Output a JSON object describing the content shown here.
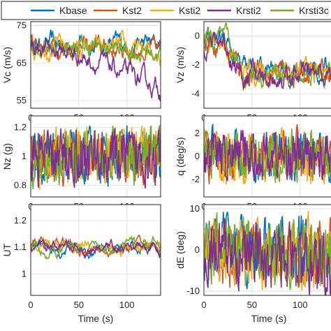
{
  "legend": {
    "entries": [
      {
        "name": "Kbase",
        "color": "#0072BD"
      },
      {
        "name": "Kst2",
        "color": "#D95319"
      },
      {
        "name": "Ksti2",
        "color": "#EDB120"
      },
      {
        "name": "Krsti2",
        "color": "#7E2F8E"
      },
      {
        "name": "Krsti3c",
        "color": "#77AC30"
      }
    ]
  },
  "chart_data": [
    {
      "type": "line",
      "id": "vc",
      "ylabel": "Vc (m/s)",
      "xlabel": "",
      "xlim": [
        0,
        135
      ],
      "ylim": [
        53,
        76
      ],
      "xticks": [
        0,
        50,
        100
      ],
      "yticks": [
        55,
        65,
        75
      ],
      "grid": true,
      "series_trend": {
        "Kbase": [
          [
            0,
            70
          ],
          [
            135,
            70
          ]
        ],
        "Kst2": [
          [
            0,
            70
          ],
          [
            135,
            68
          ]
        ],
        "Ksti2": [
          [
            0,
            70
          ],
          [
            135,
            68
          ]
        ],
        "Krsti2": [
          [
            0,
            70
          ],
          [
            40,
            68
          ],
          [
            80,
            64
          ],
          [
            135,
            58
          ]
        ],
        "Krsti3c": [
          [
            0,
            70
          ],
          [
            135,
            68
          ]
        ]
      },
      "noise_amplitude": 2.8,
      "noise_smooth": 0.82
    },
    {
      "type": "line",
      "id": "vz",
      "ylabel": "Vz (m/s)",
      "xlabel": "",
      "xlim": [
        0,
        135
      ],
      "ylim": [
        -5,
        1
      ],
      "xticks": [
        0,
        50,
        100
      ],
      "yticks": [
        -4,
        -2,
        0
      ],
      "grid": true,
      "series_trend": {
        "Kbase": [
          [
            0,
            -0.5
          ],
          [
            20,
            -0.3
          ],
          [
            40,
            -2.5
          ],
          [
            135,
            -2.5
          ]
        ],
        "Kst2": [
          [
            0,
            -0.5
          ],
          [
            20,
            -0.3
          ],
          [
            40,
            -2.6
          ],
          [
            135,
            -2.6
          ]
        ],
        "Ksti2": [
          [
            0,
            -0.5
          ],
          [
            20,
            -0.3
          ],
          [
            40,
            -2.5
          ],
          [
            135,
            -2.5
          ]
        ],
        "Krsti2": [
          [
            0,
            -0.5
          ],
          [
            20,
            -0.3
          ],
          [
            40,
            -2.8
          ],
          [
            135,
            -2.8
          ]
        ],
        "Krsti3c": [
          [
            0,
            -0.5
          ],
          [
            20,
            -0.3
          ],
          [
            40,
            -2.6
          ],
          [
            135,
            -2.6
          ]
        ]
      },
      "noise_amplitude": 0.8,
      "noise_smooth": 0.8
    },
    {
      "type": "line",
      "id": "nz",
      "ylabel": "Nz (g)",
      "xlabel": "",
      "xlim": [
        0,
        135
      ],
      "ylim": [
        0.72,
        1.28
      ],
      "xticks": [
        0,
        50,
        100
      ],
      "yticks": [
        0.8,
        1,
        1.2
      ],
      "grid": true,
      "series_trend": {
        "Kbase": [
          [
            0,
            1
          ],
          [
            135,
            1
          ]
        ],
        "Kst2": [
          [
            0,
            1
          ],
          [
            135,
            1
          ]
        ],
        "Ksti2": [
          [
            0,
            1
          ],
          [
            135,
            1
          ]
        ],
        "Krsti2": [
          [
            0,
            1
          ],
          [
            135,
            1
          ]
        ],
        "Krsti3c": [
          [
            0,
            1
          ],
          [
            135,
            1
          ]
        ]
      },
      "noise_amplitude": 0.08,
      "noise_smooth": 0.35
    },
    {
      "type": "line",
      "id": "q",
      "ylabel": "q (deg/s)",
      "xlabel": "",
      "xlim": [
        0,
        135
      ],
      "ylim": [
        -3.5,
        3.5
      ],
      "xticks": [
        0,
        50,
        100
      ],
      "yticks": [
        -2,
        0,
        2
      ],
      "grid": true,
      "series_trend": {
        "Kbase": [
          [
            0,
            0
          ],
          [
            135,
            0
          ]
        ],
        "Kst2": [
          [
            0,
            0
          ],
          [
            135,
            0
          ]
        ],
        "Ksti2": [
          [
            0,
            0
          ],
          [
            135,
            0
          ]
        ],
        "Krsti2": [
          [
            0,
            0
          ],
          [
            135,
            0
          ]
        ],
        "Krsti3c": [
          [
            0,
            0
          ],
          [
            135,
            0
          ]
        ]
      },
      "noise_amplitude": 1.0,
      "noise_smooth": 0.45
    },
    {
      "type": "line",
      "id": "ut",
      "ylabel": "UT",
      "xlabel": "Time (s)",
      "xlim": [
        0,
        135
      ],
      "ylim": [
        0.92,
        1.26
      ],
      "xticks": [
        0,
        50,
        100
      ],
      "yticks": [
        1,
        1.1,
        1.2
      ],
      "grid": true,
      "series_trend": {
        "Kbase": [
          [
            0,
            1.1
          ],
          [
            135,
            1.1
          ]
        ],
        "Kst2": [
          [
            0,
            1.1
          ],
          [
            135,
            1.1
          ]
        ],
        "Ksti2": [
          [
            0,
            1.1
          ],
          [
            135,
            1.1
          ]
        ],
        "Krsti2": [
          [
            0,
            1.1
          ],
          [
            135,
            1.1
          ]
        ],
        "Krsti3c": [
          [
            0,
            1.1
          ],
          [
            135,
            1.1
          ]
        ]
      },
      "noise_amplitude": 0.05,
      "noise_smooth": 0.93
    },
    {
      "type": "line",
      "id": "de",
      "ylabel": "dE (deg)",
      "xlabel": "Time (s)",
      "xlim": [
        0,
        135
      ],
      "ylim": [
        -11,
        11
      ],
      "xticks": [
        0,
        50,
        100
      ],
      "yticks": [
        -10,
        0,
        10
      ],
      "grid": true,
      "series_trend": {
        "Kbase": [
          [
            0,
            0
          ],
          [
            135,
            0
          ]
        ],
        "Kst2": [
          [
            0,
            0
          ],
          [
            135,
            -1
          ]
        ],
        "Ksti2": [
          [
            0,
            0
          ],
          [
            135,
            -1
          ]
        ],
        "Krsti2": [
          [
            0,
            0
          ],
          [
            80,
            -2
          ],
          [
            135,
            -4
          ]
        ],
        "Krsti3c": [
          [
            0,
            0
          ],
          [
            135,
            -1
          ]
        ]
      },
      "noise_amplitude": 3.5,
      "noise_smooth": 0.4
    }
  ]
}
